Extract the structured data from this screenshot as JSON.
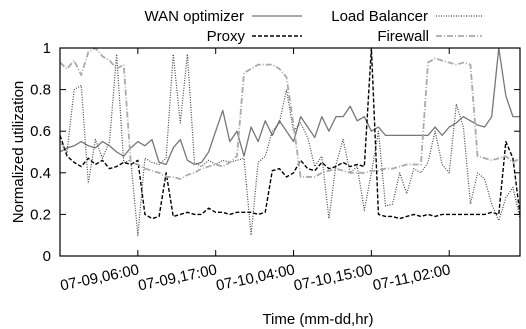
{
  "chart_data": {
    "type": "line",
    "title": "",
    "xlabel": "Time (mm-dd,hr)",
    "ylabel": "Normalized utilization",
    "ylim": [
      0,
      1
    ],
    "y_ticks": [
      0,
      0.2,
      0.4,
      0.6,
      0.8,
      1
    ],
    "y_tick_labels": [
      "0",
      "0.2",
      "0.4",
      "0.6",
      "0.8",
      "1"
    ],
    "x_range_hours": [
      0,
      65
    ],
    "x_tick_labels": [
      "07-09,06:00",
      "07-09,17:00",
      "07-10,04:00",
      "07-10,15:00",
      "07-11,02:00"
    ],
    "x_tick_hours": [
      11,
      22,
      33,
      44,
      55
    ],
    "grid": false,
    "legend_placement": "top",
    "series": [
      {
        "name": "WAN optimizer",
        "style": "solid",
        "color": "#777777",
        "values": [
          0.5,
          0.52,
          0.53,
          0.55,
          0.53,
          0.52,
          0.55,
          0.53,
          0.5,
          0.48,
          0.52,
          0.55,
          0.53,
          0.56,
          0.45,
          0.44,
          0.52,
          0.56,
          0.46,
          0.44,
          0.45,
          0.5,
          0.6,
          0.7,
          0.55,
          0.6,
          0.48,
          0.62,
          0.55,
          0.65,
          0.58,
          0.65,
          0.6,
          0.55,
          0.67,
          0.62,
          0.57,
          0.67,
          0.6,
          0.67,
          0.67,
          0.72,
          0.65,
          0.67,
          0.6,
          0.62,
          0.58,
          0.58,
          0.58,
          0.58,
          0.58,
          0.58,
          0.58,
          0.62,
          0.58,
          0.62,
          0.64,
          0.67,
          0.65,
          0.63,
          0.62,
          0.67,
          1.0,
          0.77,
          0.67,
          0.67
        ]
      },
      {
        "name": "Proxy",
        "style": "dashed",
        "color": "#000000",
        "values": [
          0.58,
          0.48,
          0.45,
          0.43,
          0.47,
          0.44,
          0.46,
          0.42,
          0.43,
          0.45,
          0.44,
          0.46,
          0.2,
          0.18,
          0.19,
          0.4,
          0.19,
          0.2,
          0.21,
          0.2,
          0.2,
          0.23,
          0.21,
          0.21,
          0.2,
          0.21,
          0.21,
          0.21,
          0.2,
          0.21,
          0.41,
          0.42,
          0.38,
          0.4,
          0.46,
          0.42,
          0.41,
          0.45,
          0.42,
          0.43,
          0.45,
          0.43,
          0.44,
          0.43,
          1.0,
          0.2,
          0.19,
          0.19,
          0.18,
          0.19,
          0.2,
          0.19,
          0.2,
          0.19,
          0.2,
          0.2,
          0.2,
          0.2,
          0.2,
          0.2,
          0.2,
          0.21,
          0.2,
          0.55,
          0.47,
          0.2
        ]
      },
      {
        "name": "Load Balancer",
        "style": "dotted",
        "color": "#444444",
        "values": [
          0.55,
          0.5,
          0.8,
          0.82,
          0.35,
          0.56,
          0.47,
          0.55,
          0.97,
          0.45,
          0.46,
          0.1,
          0.47,
          0.45,
          0.44,
          0.47,
          0.97,
          0.64,
          0.97,
          0.45,
          0.43,
          0.46,
          0.44,
          0.46,
          0.45,
          0.46,
          0.47,
          0.1,
          0.45,
          0.48,
          0.6,
          0.64,
          0.8,
          0.6,
          0.64,
          0.57,
          0.43,
          0.48,
          0.18,
          0.44,
          0.56,
          0.4,
          0.43,
          0.22,
          0.4,
          0.6,
          0.24,
          0.25,
          0.4,
          0.3,
          0.42,
          0.4,
          0.45,
          0.6,
          0.44,
          0.4,
          0.73,
          0.62,
          0.25,
          0.4,
          0.37,
          0.25,
          0.17,
          0.28,
          0.33,
          0.18
        ]
      },
      {
        "name": "Firewall",
        "style": "dash-dot",
        "color": "#aaaaaa",
        "values": [
          0.93,
          0.9,
          0.94,
          0.87,
          0.98,
          1.0,
          0.96,
          0.94,
          0.9,
          0.92,
          0.45,
          0.44,
          0.42,
          0.41,
          0.4,
          0.38,
          0.38,
          0.37,
          0.39,
          0.4,
          0.42,
          0.43,
          0.44,
          0.43,
          0.45,
          0.48,
          0.88,
          0.9,
          0.92,
          0.92,
          0.92,
          0.9,
          0.86,
          0.63,
          0.38,
          0.38,
          0.38,
          0.4,
          0.41,
          0.42,
          0.41,
          0.4,
          0.4,
          0.4,
          0.41,
          0.41,
          0.42,
          0.42,
          0.43,
          0.44,
          0.44,
          0.44,
          0.93,
          0.95,
          0.94,
          0.93,
          0.92,
          0.93,
          0.92,
          0.48,
          0.47,
          0.46,
          0.47,
          0.48,
          0.45,
          0.47
        ]
      }
    ]
  }
}
